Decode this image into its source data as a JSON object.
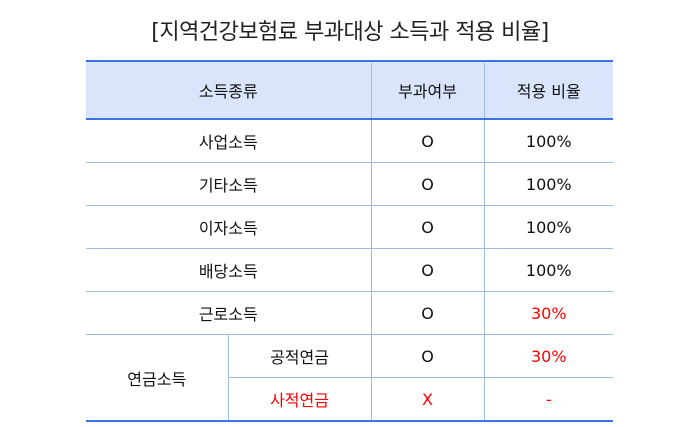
{
  "title": "[지역건강보험료 부과대상 소득과 적용 비율]",
  "headers": [
    "소득종류",
    "부과여부",
    "적용 비율"
  ],
  "rows": [
    {
      "type": "사업소득",
      "charged": "O",
      "rate": "100%"
    },
    {
      "type": "기타소득",
      "charged": "O",
      "rate": "100%"
    },
    {
      "type": "이자소득",
      "charged": "O",
      "rate": "100%"
    },
    {
      "type": "배당소득",
      "charged": "O",
      "rate": "100%"
    },
    {
      "type": "근로소득",
      "charged": "O",
      "rate": "30%"
    }
  ],
  "pension": {
    "group": "연금소득",
    "sub": [
      {
        "type": "공적연금",
        "charged": "O",
        "rate": "30%"
      },
      {
        "type": "사적연금",
        "charged": "X",
        "rate": "-"
      }
    ]
  },
  "colors": {
    "header_bg": "#dae5fb",
    "border_accent": "#3a72e8",
    "highlight": "#ff0000"
  }
}
